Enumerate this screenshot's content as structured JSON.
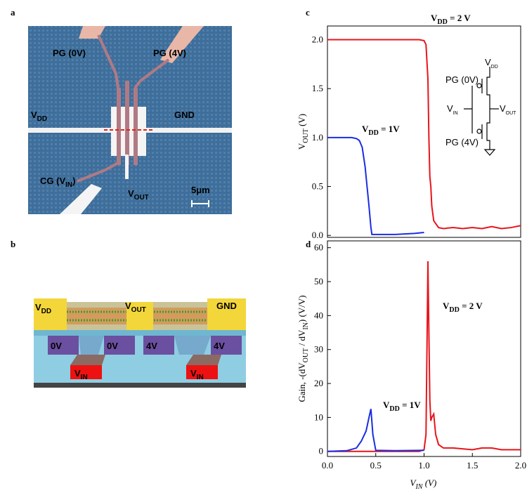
{
  "panel_labels": [
    "a",
    "b",
    "c",
    "d"
  ],
  "micrograph": {
    "labels": [
      [
        "PG (0V)"
      ],
      [
        "PG (4V)"
      ],
      [
        "V",
        "DD"
      ],
      [
        "GND"
      ],
      [
        "CG (V",
        "IN",
        ")"
      ],
      [
        "V",
        "OUT"
      ],
      [
        "5μm"
      ]
    ]
  },
  "device": {
    "labels": [
      [
        "V",
        "DD"
      ],
      [
        "V",
        "OUT"
      ],
      [
        "GND"
      ],
      [
        "0V"
      ],
      [
        "0V"
      ],
      [
        "4V"
      ],
      [
        "4V"
      ],
      [
        "V",
        "IN"
      ],
      [
        "V",
        "IN"
      ]
    ]
  },
  "chart_data": [
    {
      "type": "line",
      "xlim": [
        0,
        2
      ],
      "ylim": [
        -0.02,
        2.14
      ],
      "yticks": [
        {
          "value": 0,
          "label": "0.0"
        },
        {
          "value": 0.5,
          "label": "0.5"
        },
        {
          "value": 1,
          "label": "1.0"
        },
        {
          "value": 1.5,
          "label": "1.5"
        },
        {
          "value": 2,
          "label": "2.0"
        }
      ],
      "ylabel": [
        "V",
        "OUT",
        " (V)"
      ],
      "inset_labels": [
        [
          "V",
          "DD"
        ],
        [
          "PG (0V)"
        ],
        [
          "V",
          "IN"
        ],
        [
          "V",
          "OUT"
        ],
        [
          "PG (4V)"
        ]
      ],
      "series": [
        {
          "label": [
            "V",
            "DD",
            " = 2 V"
          ],
          "color": "#e8141b",
          "x": [
            0,
            0.5,
            0.95,
            1.0,
            1.02,
            1.04,
            1.05,
            1.06,
            1.07,
            1.08,
            1.1,
            1.15,
            1.2,
            1.3,
            1.4,
            1.5,
            1.6,
            1.7,
            1.8,
            1.9,
            2.0
          ],
          "values": [
            2.0,
            2.0,
            2.0,
            1.99,
            1.95,
            1.6,
            1.0,
            0.6,
            0.5,
            0.3,
            0.15,
            0.08,
            0.07,
            0.08,
            0.07,
            0.08,
            0.07,
            0.09,
            0.07,
            0.08,
            0.1
          ]
        },
        {
          "label": [
            "V",
            "DD",
            " = 1V"
          ],
          "color": "#1a2ee0",
          "x": [
            0,
            0.25,
            0.3,
            0.33,
            0.36,
            0.39,
            0.41,
            0.43,
            0.45,
            0.46,
            0.5,
            0.7,
            0.9,
            1.0
          ],
          "values": [
            1.0,
            1.0,
            0.99,
            0.97,
            0.9,
            0.7,
            0.5,
            0.3,
            0.08,
            0.01,
            0.01,
            0.01,
            0.02,
            0.03
          ]
        }
      ]
    },
    {
      "type": "line",
      "xlim": [
        0,
        2
      ],
      "ylim": [
        -1.5,
        62
      ],
      "xticks": [
        {
          "value": 0,
          "label": "0.0"
        },
        {
          "value": 0.5,
          "label": "0.5"
        },
        {
          "value": 1,
          "label": "1.0"
        },
        {
          "value": 1.5,
          "label": "1.5"
        },
        {
          "value": 2,
          "label": "2.0"
        }
      ],
      "yticks": [
        0,
        10,
        20,
        30,
        40,
        50,
        60
      ],
      "xlabel": [
        "V",
        "IN",
        " (V)"
      ],
      "ylabel": [
        "Gain, -(dV",
        "OUT",
        " / dV",
        "IN",
        ") (V/V)"
      ],
      "series": [
        {
          "label": [
            "V",
            "DD",
            " = 2 V"
          ],
          "color": "#e8141b",
          "x": [
            0,
            0.5,
            0.95,
            1.0,
            1.02,
            1.03,
            1.04,
            1.05,
            1.06,
            1.07,
            1.08,
            1.1,
            1.12,
            1.15,
            1.2,
            1.3,
            1.5,
            1.6,
            1.7,
            1.8,
            2.0
          ],
          "values": [
            0,
            0,
            0,
            0.5,
            5,
            30,
            56,
            35,
            15,
            9,
            10,
            11,
            5,
            2,
            1,
            1,
            0.5,
            1,
            1,
            0.5,
            0.5
          ]
        },
        {
          "label": [
            "V",
            "DD",
            " = 1V"
          ],
          "color": "#1a2ee0",
          "x": [
            0,
            0.2,
            0.3,
            0.35,
            0.4,
            0.43,
            0.45,
            0.47,
            0.5,
            0.7,
            1.0
          ],
          "values": [
            0,
            0.2,
            1,
            3,
            6,
            10,
            12.5,
            5,
            0.3,
            0.2,
            0.3
          ]
        }
      ]
    }
  ]
}
